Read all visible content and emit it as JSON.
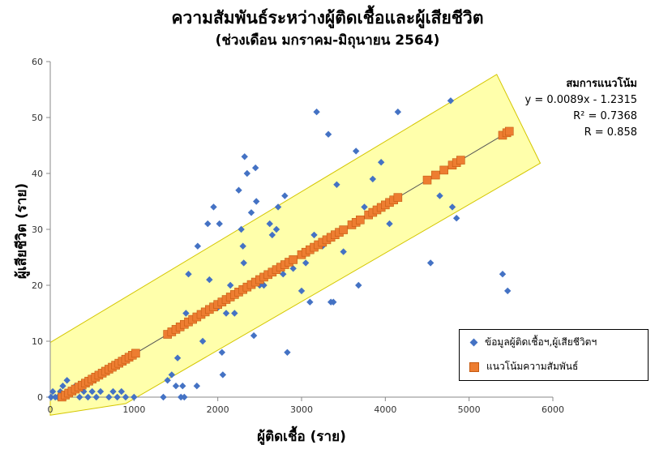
{
  "title": "ความสัมพันธ์ระหว่างผู้ติดเชื้อและผู้เสียชีวิต",
  "subtitle": "(ช่วงเดือน มกราคม-มิถุนายน 2564)",
  "chart_data": {
    "type": "scatter",
    "xlabel": "ผู้ติดเชื้อ (ราย)",
    "ylabel": "ผู้เสียชีวิต (ราย)",
    "xlim": [
      0,
      6000
    ],
    "ylim": [
      0,
      60
    ],
    "xticks": [
      0,
      1000,
      2000,
      3000,
      4000,
      5000,
      6000
    ],
    "yticks": [
      0,
      10,
      20,
      30,
      40,
      50,
      60
    ],
    "grid": false,
    "legend_position": "bottom-right",
    "series": [
      {
        "name": "ข้อมูลผู้ติดเชื้อฯ,ผู้เสียชีวิตฯ",
        "marker": "diamond",
        "color": "#4472c4",
        "points": [
          [
            10,
            0
          ],
          [
            30,
            1
          ],
          [
            60,
            0
          ],
          [
            90,
            0
          ],
          [
            120,
            1
          ],
          [
            150,
            2
          ],
          [
            200,
            3
          ],
          [
            250,
            1
          ],
          [
            300,
            2
          ],
          [
            350,
            0
          ],
          [
            400,
            1
          ],
          [
            450,
            0
          ],
          [
            500,
            1
          ],
          [
            550,
            0
          ],
          [
            600,
            1
          ],
          [
            700,
            0
          ],
          [
            750,
            1
          ],
          [
            800,
            0
          ],
          [
            850,
            1
          ],
          [
            900,
            0
          ],
          [
            1000,
            0
          ],
          [
            1350,
            0
          ],
          [
            1400,
            3
          ],
          [
            1450,
            4
          ],
          [
            1500,
            2
          ],
          [
            1520,
            7
          ],
          [
            1560,
            0
          ],
          [
            1580,
            2
          ],
          [
            1600,
            0
          ],
          [
            1620,
            15
          ],
          [
            1650,
            22
          ],
          [
            1750,
            2
          ],
          [
            1760,
            27
          ],
          [
            1820,
            10
          ],
          [
            1880,
            31
          ],
          [
            1900,
            21
          ],
          [
            1950,
            34
          ],
          [
            2000,
            16
          ],
          [
            2020,
            31
          ],
          [
            2050,
            8
          ],
          [
            2060,
            4
          ],
          [
            2100,
            15
          ],
          [
            2150,
            20
          ],
          [
            2200,
            15
          ],
          [
            2250,
            37
          ],
          [
            2280,
            30
          ],
          [
            2300,
            27
          ],
          [
            2310,
            24
          ],
          [
            2320,
            43
          ],
          [
            2350,
            40
          ],
          [
            2400,
            33
          ],
          [
            2430,
            11
          ],
          [
            2450,
            41
          ],
          [
            2460,
            35
          ],
          [
            2500,
            20
          ],
          [
            2550,
            20
          ],
          [
            2620,
            31
          ],
          [
            2650,
            29
          ],
          [
            2700,
            30
          ],
          [
            2720,
            34
          ],
          [
            2780,
            22
          ],
          [
            2800,
            36
          ],
          [
            2830,
            8
          ],
          [
            2900,
            23
          ],
          [
            3000,
            19
          ],
          [
            3050,
            24
          ],
          [
            3100,
            17
          ],
          [
            3150,
            29
          ],
          [
            3180,
            51
          ],
          [
            3250,
            27
          ],
          [
            3300,
            28
          ],
          [
            3320,
            47
          ],
          [
            3350,
            17
          ],
          [
            3380,
            17
          ],
          [
            3420,
            38
          ],
          [
            3500,
            26
          ],
          [
            3650,
            44
          ],
          [
            3680,
            20
          ],
          [
            3750,
            34
          ],
          [
            3850,
            39
          ],
          [
            3950,
            42
          ],
          [
            4050,
            31
          ],
          [
            4150,
            51
          ],
          [
            4540,
            24
          ],
          [
            4650,
            36
          ],
          [
            4780,
            53
          ],
          [
            4800,
            34
          ],
          [
            4850,
            32
          ],
          [
            5400,
            22
          ],
          [
            5460,
            19
          ]
        ]
      },
      {
        "name": "แนวโน้มความสัมพันธ์",
        "marker": "square",
        "color": "#ed7d31",
        "trendline": {
          "slope": 0.0089,
          "intercept": -1.2315,
          "x_range": [
            140,
            5480
          ]
        },
        "x_values": [
          140,
          180,
          220,
          260,
          300,
          340,
          380,
          420,
          460,
          500,
          540,
          580,
          620,
          660,
          700,
          740,
          780,
          820,
          860,
          900,
          940,
          980,
          1020,
          1400,
          1450,
          1500,
          1550,
          1600,
          1650,
          1700,
          1750,
          1800,
          1850,
          1900,
          1950,
          2000,
          2050,
          2100,
          2150,
          2200,
          2250,
          2300,
          2350,
          2400,
          2450,
          2500,
          2550,
          2600,
          2650,
          2700,
          2750,
          2800,
          2850,
          2900,
          3000,
          3050,
          3100,
          3150,
          3200,
          3250,
          3300,
          3350,
          3400,
          3450,
          3500,
          3600,
          3650,
          3700,
          3800,
          3850,
          3900,
          3950,
          4000,
          4050,
          4100,
          4150,
          4500,
          4600,
          4700,
          4800,
          4850,
          4900,
          5400,
          5450,
          5480
        ]
      }
    ],
    "trendline_equation": {
      "heading": "สมการแนวโน้ม",
      "equation": "y = 0.0089x - 1.2315",
      "r_squared": "R² = 0.7368",
      "r": "R = 0.858"
    }
  }
}
